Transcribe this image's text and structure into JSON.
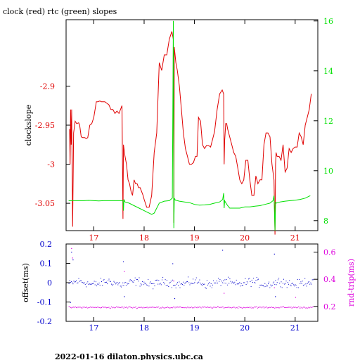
{
  "title": "clock (red) rtc (green) slopes",
  "footer": "2022-01-16  dilaton.physics.ubc.ca",
  "colors": {
    "clock": "#e00000",
    "rtc": "#00e000",
    "offset": "#0000cc",
    "rtt": "#dd00dd",
    "axis": "#000000"
  },
  "chart_data": [
    {
      "type": "line",
      "title": "clock (red) rtc (green) slopes",
      "ylabel": "clockslope",
      "xlim": [
        16.45,
        21.45
      ],
      "ylim": [
        -3.085,
        -2.815
      ],
      "y2lim": [
        7.6,
        16.05
      ],
      "xticks": [
        17,
        18,
        19,
        20,
        21
      ],
      "yticks": [
        -2.9,
        -2.95,
        -3,
        -3.05
      ],
      "ytick_labels": [
        "-2.9",
        "-2.95",
        "-3",
        "-3.05"
      ],
      "y2ticks": [
        8,
        10,
        12,
        14,
        16
      ],
      "y2tick_labels": [
        "8",
        "10",
        "12",
        "14",
        "16"
      ],
      "xtick_labels": [
        "17",
        "18",
        "19",
        "20",
        "21"
      ],
      "series": [
        {
          "name": "clock",
          "axis": "left",
          "x": [
            16.52,
            16.53,
            16.54,
            16.55,
            16.56,
            16.58,
            16.6,
            16.63,
            16.66,
            16.7,
            16.72,
            16.75,
            16.78,
            16.82,
            16.85,
            16.88,
            16.92,
            16.96,
            17.0,
            17.05,
            17.08,
            17.12,
            17.15,
            17.18,
            17.22,
            17.26,
            17.3,
            17.34,
            17.38,
            17.42,
            17.46,
            17.5,
            17.56,
            17.58,
            17.59,
            17.6,
            17.62,
            17.65,
            17.68,
            17.71,
            17.74,
            17.77,
            17.8,
            17.83,
            17.86,
            17.89,
            17.92,
            17.95,
            17.98,
            18.0,
            18.05,
            18.1,
            18.15,
            18.2,
            18.25,
            18.3,
            18.35,
            18.4,
            18.45,
            18.5,
            18.55,
            18.58,
            18.59,
            18.6,
            18.63,
            18.66,
            18.7,
            18.74,
            18.78,
            18.82,
            18.86,
            18.9,
            18.94,
            18.98,
            19.02,
            19.05,
            19.08,
            19.12,
            19.16,
            19.2,
            19.24,
            19.28,
            19.32,
            19.36,
            19.4,
            19.45,
            19.5,
            19.55,
            19.58,
            19.59,
            19.6,
            19.62,
            19.64,
            19.66,
            19.7,
            19.74,
            19.78,
            19.82,
            19.86,
            19.9,
            19.94,
            19.98,
            20.02,
            20.06,
            20.1,
            20.14,
            20.18,
            20.22,
            20.26,
            20.3,
            20.34,
            20.38,
            20.42,
            20.46,
            20.5,
            20.54,
            20.58,
            20.6,
            20.61,
            20.62,
            20.64,
            20.68,
            20.72,
            20.76,
            20.8,
            20.84,
            20.88,
            20.92,
            20.96,
            21.0,
            21.04,
            21.08,
            21.12,
            21.16,
            21.2,
            21.24,
            21.28,
            21.32
          ],
          "y": [
            -2.955,
            -3.0,
            -2.93,
            -2.975,
            -2.93,
            -3.08,
            -2.96,
            -2.945,
            -2.948,
            -2.947,
            -2.95,
            -2.965,
            -2.966,
            -2.966,
            -2.967,
            -2.966,
            -2.95,
            -2.948,
            -2.94,
            -2.92,
            -2.92,
            -2.919,
            -2.92,
            -2.92,
            -2.92,
            -2.922,
            -2.924,
            -2.93,
            -2.93,
            -2.935,
            -2.932,
            -2.935,
            -2.925,
            -3.07,
            -2.975,
            -2.98,
            -2.99,
            -3.0,
            -3.02,
            -3.025,
            -3.035,
            -3.04,
            -3.02,
            -3.025,
            -3.025,
            -3.03,
            -3.03,
            -3.035,
            -3.04,
            -3.045,
            -3.055,
            -3.055,
            -3.04,
            -2.985,
            -2.96,
            -2.87,
            -2.88,
            -2.86,
            -2.86,
            -2.84,
            -2.83,
            -2.84,
            -3.075,
            -2.85,
            -2.87,
            -2.88,
            -2.9,
            -2.93,
            -2.96,
            -2.98,
            -2.99,
            -3.0,
            -3.0,
            -2.998,
            -2.99,
            -2.99,
            -2.94,
            -2.945,
            -2.975,
            -2.98,
            -2.976,
            -2.976,
            -2.978,
            -2.968,
            -2.958,
            -2.93,
            -2.91,
            -2.905,
            -2.91,
            -3.0,
            -2.97,
            -2.948,
            -2.948,
            -2.955,
            -2.965,
            -2.975,
            -2.985,
            -2.99,
            -3.005,
            -3.02,
            -3.025,
            -3.02,
            -2.995,
            -2.995,
            -3.02,
            -3.04,
            -3.04,
            -3.015,
            -3.025,
            -3.02,
            -3.02,
            -2.975,
            -2.96,
            -2.96,
            -2.965,
            -3.0,
            -3.02,
            -3.09,
            -3.0,
            -2.985,
            -2.99,
            -2.99,
            -2.995,
            -2.975,
            -3.01,
            -3.005,
            -2.98,
            -2.985,
            -2.98,
            -2.978,
            -2.978,
            -2.96,
            -2.965,
            -2.975,
            -2.95,
            -2.94,
            -2.93,
            -2.91
          ]
        },
        {
          "name": "rtc",
          "axis": "right",
          "x": [
            16.5,
            16.6,
            16.7,
            16.8,
            16.9,
            17.0,
            17.1,
            17.2,
            17.3,
            17.4,
            17.5,
            17.58,
            17.59,
            17.6,
            17.62,
            17.7,
            17.8,
            17.9,
            18.0,
            18.05,
            18.1,
            18.15,
            18.2,
            18.25,
            18.3,
            18.4,
            18.5,
            18.56,
            18.58,
            18.59,
            18.6,
            18.62,
            18.66,
            18.7,
            18.8,
            18.9,
            19.0,
            19.1,
            19.2,
            19.3,
            19.4,
            19.5,
            19.56,
            19.58,
            19.59,
            19.6,
            19.62,
            19.66,
            19.7,
            19.8,
            19.9,
            20.0,
            20.1,
            20.2,
            20.3,
            20.4,
            20.5,
            20.56,
            20.58,
            20.6,
            20.61,
            20.62,
            20.66,
            20.7,
            20.8,
            20.9,
            21.0,
            21.1,
            21.2,
            21.3
          ],
          "y": [
            8.8,
            8.8,
            8.8,
            8.8,
            8.81,
            8.8,
            8.79,
            8.8,
            8.8,
            8.8,
            8.8,
            8.8,
            8.4,
            8.85,
            8.75,
            8.7,
            8.6,
            8.5,
            8.4,
            8.35,
            8.3,
            8.25,
            8.3,
            8.5,
            8.7,
            8.78,
            8.8,
            8.9,
            16.0,
            7.7,
            8.9,
            8.82,
            8.8,
            8.78,
            8.75,
            8.72,
            8.65,
            8.62,
            8.63,
            8.65,
            8.7,
            8.75,
            8.85,
            9.1,
            8.5,
            8.8,
            8.72,
            8.6,
            8.5,
            8.5,
            8.5,
            8.55,
            8.55,
            8.58,
            8.6,
            8.65,
            8.7,
            8.8,
            9.0,
            7.6,
            8.75,
            8.7,
            8.72,
            8.75,
            8.78,
            8.8,
            8.82,
            8.85,
            8.9,
            9.0
          ]
        }
      ]
    },
    {
      "type": "scatter",
      "ylabel": "offset(ms)",
      "y2label": "rnd-trip(ms)",
      "xlim": [
        16.45,
        21.45
      ],
      "ylim": [
        -0.2,
        0.2
      ],
      "y2lim": [
        0.09,
        0.66
      ],
      "xticks": [
        17,
        18,
        19,
        20,
        21
      ],
      "xtick_labels": [
        "17",
        "18",
        "19",
        "20",
        "21"
      ],
      "yticks": [
        -0.2,
        -0.1,
        0,
        0.1,
        0.2
      ],
      "ytick_labels": [
        "-0.2",
        "-0.1",
        "0",
        "0.1",
        "0.2"
      ],
      "y2ticks": [
        0.2,
        0.4,
        0.6
      ],
      "y2tick_labels": [
        "0.2",
        "0.4",
        "0.6"
      ],
      "series": [
        {
          "name": "offset",
          "axis": "left",
          "baseline": 0.0,
          "spread": 0.022,
          "points": 300,
          "outliers_x": [
            16.55,
            16.58,
            17.58,
            18.56,
            19.55,
            20.58,
            16.53,
            17.6,
            18.6,
            20.6
          ],
          "outliers_y": [
            0.16,
            0.12,
            0.11,
            0.1,
            0.17,
            0.15,
            -0.1,
            -0.07,
            -0.08,
            -0.07
          ]
        },
        {
          "name": "rnd-trip",
          "axis": "right",
          "baseline": 0.195,
          "spread": 0.006,
          "points": 300,
          "outliers_x": [
            16.55,
            16.57,
            17.6,
            18.58,
            19.58,
            20.58,
            21.0
          ],
          "outliers_y": [
            0.63,
            0.56,
            0.46,
            0.39,
            0.3,
            0.34,
            0.27
          ]
        }
      ]
    }
  ]
}
